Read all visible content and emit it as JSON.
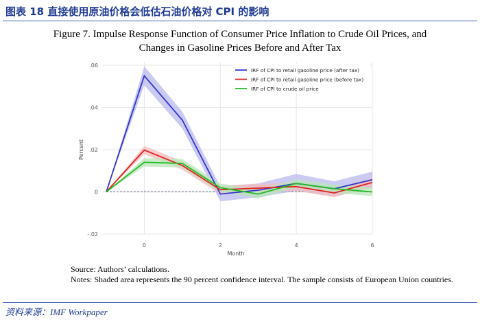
{
  "header": {
    "title": "图表 18   直接使用原油价格会低估石油价格对 CPI 的影响"
  },
  "figure": {
    "title_line1": "Figure 7. Impulse Response Function of Consumer Price Inflation to Crude Oil Prices, and",
    "title_line2": "Changes in Gasoline Prices Before and After Tax"
  },
  "chart_data": {
    "type": "line",
    "xlabel": "Month",
    "ylabel": "Percent",
    "xlim": [
      -1,
      6
    ],
    "ylim": [
      -0.02,
      0.06
    ],
    "x_ticks": [
      0,
      2,
      4,
      6
    ],
    "y_ticks": [
      -0.02,
      0,
      0.02,
      0.04,
      0.06
    ],
    "x_tick_labels": [
      "0",
      "2",
      "4",
      "6"
    ],
    "y_tick_labels": [
      "-.02",
      "0",
      ".02",
      ".04",
      ".06"
    ],
    "grid": true,
    "legend_position": "top-right",
    "x": [
      -1,
      0,
      1,
      2,
      3,
      4,
      5,
      6
    ],
    "series": [
      {
        "name": "IRF of CPI to retail gasoline price (after tax)",
        "color": "#3333cc",
        "band_color": "#b8b8ee",
        "values": [
          0,
          0.055,
          0.034,
          -0.001,
          0.0008,
          0.004,
          0.0015,
          0.0058
        ],
        "lower": [
          0,
          0.0505,
          0.03,
          -0.0045,
          -0.0025,
          0.0005,
          -0.002,
          0.002
        ],
        "upper": [
          0,
          0.0595,
          0.038,
          0.0025,
          0.004,
          0.0085,
          0.005,
          0.0096
        ]
      },
      {
        "name": "IRF of CPI to retail gasoline price (before tax)",
        "color": "#e02020",
        "band_color": "#f3bcbc",
        "values": [
          0,
          0.0198,
          0.0125,
          0.001,
          0.0018,
          0.0025,
          -0.0005,
          0.0045
        ],
        "lower": [
          0,
          0.0178,
          0.0105,
          -0.001,
          -0.0002,
          0.0005,
          -0.0025,
          0.0025
        ],
        "upper": [
          0,
          0.0218,
          0.0145,
          0.003,
          0.0038,
          0.0045,
          0.0015,
          0.0065
        ]
      },
      {
        "name": "IRF of CPI to crude oil price",
        "color": "#22bb22",
        "band_color": "#b9e6b9",
        "values": [
          0,
          0.014,
          0.0135,
          0.002,
          -0.001,
          0.004,
          0.0015,
          0.0
        ],
        "lower": [
          0,
          0.012,
          0.0115,
          0.0,
          -0.003,
          0.002,
          -0.0005,
          -0.002
        ],
        "upper": [
          0,
          0.016,
          0.0155,
          0.004,
          0.001,
          0.006,
          0.0035,
          0.002
        ]
      }
    ]
  },
  "notes": {
    "source": "Source: Authors’ calculations.",
    "text": "Notes: Shaded area represents the 90 percent confidence interval. The sample consists of European Union countries."
  },
  "footer": {
    "source": "资料来源：IMF Workpaper"
  }
}
